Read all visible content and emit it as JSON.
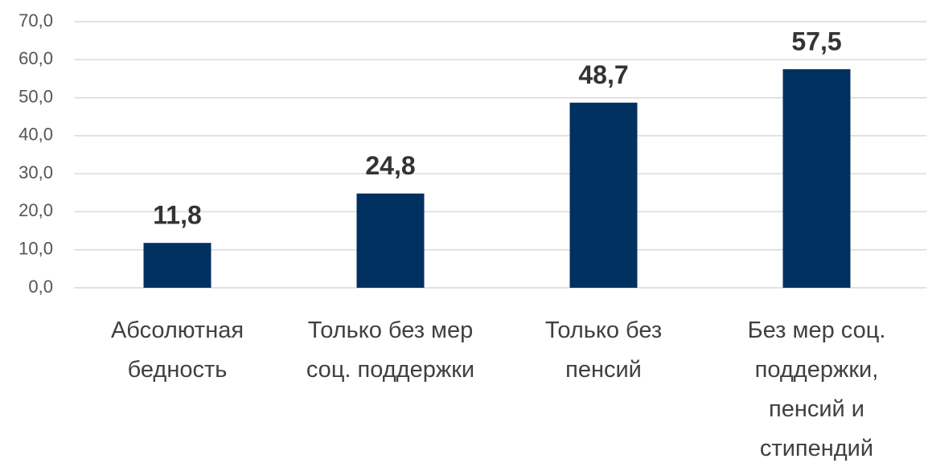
{
  "chart_data": {
    "type": "bar",
    "categories": [
      "Абсолютная\nбедность",
      "Только без мер\nсоц. поддержки",
      "Только без\nпенсий",
      "Без мер соц.\nподдержки,\nпенсий и\nстипендий"
    ],
    "values": [
      11.8,
      24.8,
      48.7,
      57.5
    ],
    "value_labels": [
      "11,8",
      "24,8",
      "48,7",
      "57,5"
    ],
    "color": "#003060",
    "ylim": [
      0,
      70
    ],
    "yticks": [
      {
        "value": 0,
        "label": "0,0"
      },
      {
        "value": 10,
        "label": "10,0"
      },
      {
        "value": 20,
        "label": "20,0"
      },
      {
        "value": 30,
        "label": "30,0"
      },
      {
        "value": 40,
        "label": "40,0"
      },
      {
        "value": 50,
        "label": "50,0"
      },
      {
        "value": 60,
        "label": "60,0"
      },
      {
        "value": 70,
        "label": "70,0"
      }
    ],
    "grid": true
  }
}
